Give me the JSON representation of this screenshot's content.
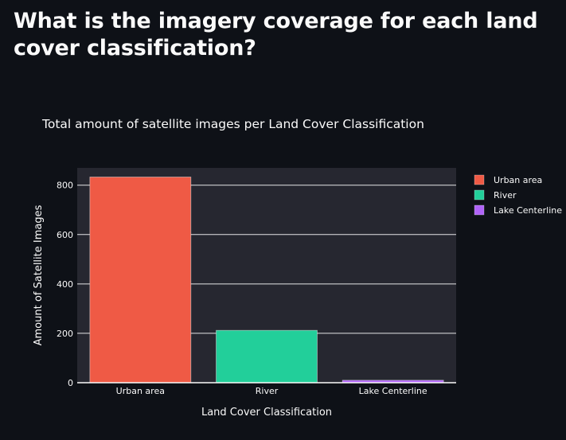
{
  "page": {
    "heading": "What is the imagery coverage for each land cover classification?"
  },
  "colors": {
    "page_background": "#0e1117",
    "plot_background": "#262730",
    "gridline": "#fafafa",
    "text": "#fafafa"
  },
  "chart_data": {
    "type": "bar",
    "title": "Total amount of satellite images per Land Cover Classification",
    "xlabel": "Land Cover Classification",
    "ylabel": "Amount of Satellite Images",
    "categories": [
      "Urban area",
      "River",
      "Lake Centerline"
    ],
    "series": [
      {
        "name": "Urban area",
        "values": [
          833,
          null,
          null
        ],
        "color": "#ef5a45"
      },
      {
        "name": "River",
        "values": [
          null,
          212,
          null
        ],
        "color": "#22cf9a"
      },
      {
        "name": "Lake Centerline",
        "values": [
          null,
          null,
          10
        ],
        "color": "#b063f8"
      }
    ],
    "ylim": [
      0,
      870
    ],
    "yticks": [
      0,
      200,
      400,
      600,
      800
    ],
    "grid": true,
    "legend": "right",
    "legend_entries": [
      "Urban area",
      "River",
      "Lake Centerline"
    ]
  }
}
